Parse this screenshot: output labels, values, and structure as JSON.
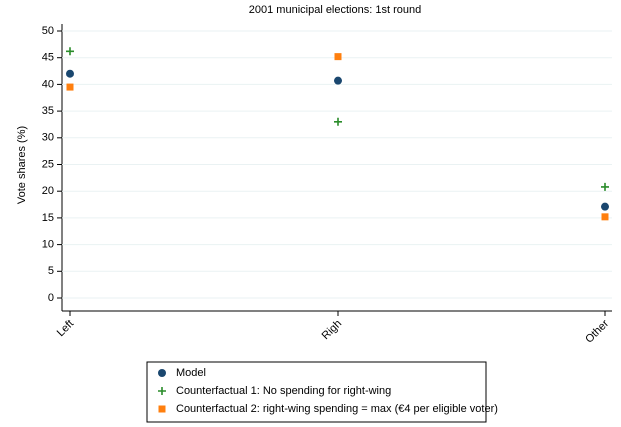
{
  "chart_data": {
    "type": "scatter",
    "title": "2001 municipal elections: 1st round",
    "y_label": "Vote shares (%)",
    "categories": [
      "Left",
      "Righ",
      "Other"
    ],
    "series": [
      {
        "name": "Model",
        "color": "#1a476f",
        "marker": "circle",
        "values": [
          42,
          40.7,
          17.1
        ]
      },
      {
        "name": "Counterfactual 1: No spending for right-wing",
        "color": "#2a8c2a",
        "marker": "plus",
        "values": [
          46.2,
          33,
          20.8
        ]
      },
      {
        "name": "Counterfactual 2: right-wing spending = max (€4 per eligible voter)",
        "color": "#ff7f0e",
        "marker": "square",
        "values": [
          39.5,
          45.2,
          15.2
        ]
      }
    ],
    "ylim": [
      0,
      50
    ],
    "yticks": [
      0,
      5,
      10,
      15,
      20,
      25,
      30,
      35,
      40,
      45,
      50
    ],
    "grid": true
  }
}
